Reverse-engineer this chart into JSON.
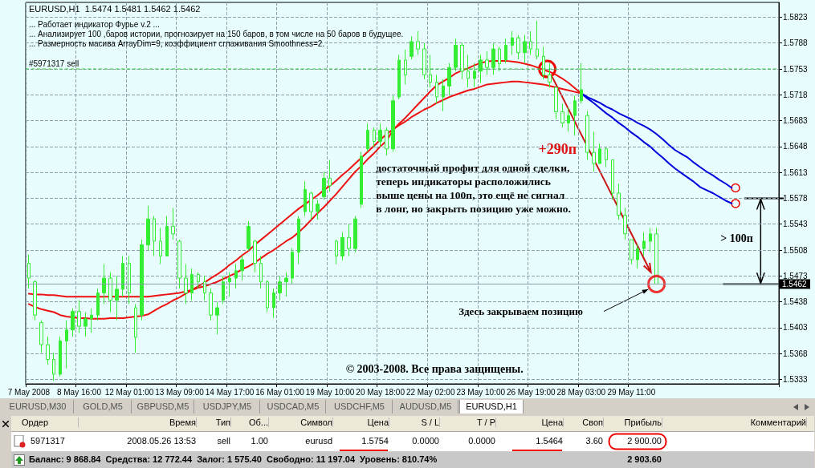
{
  "chart_data": {
    "type": "candlestick",
    "categories": [
      "7 May 2008",
      null,
      null,
      null,
      null,
      null,
      null,
      null,
      "8 May 16:00",
      null,
      null,
      null,
      null,
      null,
      null,
      null,
      "12 May 01:00",
      null,
      null,
      null,
      null,
      null,
      null,
      null,
      "13 May 09:00",
      null,
      null,
      null,
      null,
      null,
      null,
      null,
      "14 May 17:00",
      null,
      null,
      null,
      null,
      null,
      null,
      null,
      "16 May 01:00",
      null,
      null,
      null,
      null,
      null,
      null,
      null,
      "19 May 10:00",
      null,
      null,
      null,
      null,
      null,
      null,
      null,
      "20 May 18:00",
      null,
      null,
      null,
      null,
      null,
      null,
      null,
      "22 May 02:00",
      null,
      null,
      null,
      null,
      null,
      null,
      null,
      "23 May 10:00",
      null,
      null,
      null,
      null,
      null,
      null,
      null,
      "26 May 19:00",
      null,
      null,
      null,
      null,
      null,
      null,
      null,
      "28 May 03:00",
      null,
      null,
      null,
      null,
      null,
      null,
      null,
      "29 May 11:00",
      null,
      null,
      null,
      null,
      null,
      null,
      null,
      null,
      null,
      null,
      null,
      null,
      null,
      null,
      null,
      null,
      null,
      null,
      null,
      null,
      null,
      null,
      null
    ],
    "series": [
      {
        "color": "#33ee33",
        "ohlc": [
          [
            1.549,
            1.5502,
            1.5456,
            1.547
          ],
          [
            1.5465,
            1.5467,
            1.5413,
            1.542
          ],
          [
            1.541,
            1.5413,
            1.5369,
            1.538
          ],
          [
            1.538,
            1.5391,
            1.5353,
            1.536
          ],
          [
            1.536,
            1.5369,
            1.5331,
            1.534
          ],
          [
            1.534,
            1.5391,
            1.5337,
            1.5385
          ],
          [
            1.5385,
            1.5413,
            1.5348,
            1.54
          ],
          [
            1.54,
            1.5429,
            1.5391,
            1.5425
          ],
          [
            1.5425,
            1.544,
            1.5396,
            1.5405
          ],
          [
            1.5405,
            1.5424,
            1.5391,
            1.5415
          ],
          [
            1.5415,
            1.5429,
            1.5396,
            1.542
          ],
          [
            1.542,
            1.5456,
            1.5413,
            1.545
          ],
          [
            1.545,
            1.5489,
            1.5435,
            1.547
          ],
          [
            1.547,
            1.5478,
            1.5424,
            1.544
          ],
          [
            1.544,
            1.5473,
            1.5413,
            1.5455
          ],
          [
            1.5455,
            1.55,
            1.5445,
            1.549
          ],
          [
            1.549,
            1.55,
            1.5435,
            1.545
          ],
          [
            1.543,
            1.5435,
            1.5369,
            1.539
          ],
          [
            1.542,
            1.5522,
            1.5413,
            1.5515
          ],
          [
            1.5515,
            1.5568,
            1.5507,
            1.555
          ],
          [
            1.555,
            1.5554,
            1.55,
            1.552
          ],
          [
            1.552,
            1.5538,
            1.5489,
            1.55
          ],
          [
            1.55,
            1.5554,
            1.55,
            1.554
          ],
          [
            1.554,
            1.5565,
            1.5522,
            1.553
          ],
          [
            1.552,
            1.5522,
            1.5456,
            1.547
          ],
          [
            1.547,
            1.5489,
            1.5435,
            1.545
          ],
          [
            1.545,
            1.5483,
            1.544,
            1.5475
          ],
          [
            1.5475,
            1.5478,
            1.5456,
            1.5465
          ],
          [
            1.5465,
            1.5473,
            1.544,
            1.545
          ],
          [
            1.545,
            1.5456,
            1.5413,
            1.542
          ],
          [
            1.542,
            1.5438,
            1.5394,
            1.543
          ],
          [
            1.544,
            1.5473,
            1.5435,
            1.5465
          ],
          [
            1.5465,
            1.5478,
            1.5445,
            1.547
          ],
          [
            1.547,
            1.5489,
            1.5456,
            1.548
          ],
          [
            1.548,
            1.55,
            1.5467,
            1.5495
          ],
          [
            1.551,
            1.5547,
            1.5507,
            1.554
          ],
          [
            1.552,
            1.5522,
            1.5478,
            1.549
          ],
          [
            1.549,
            1.55,
            1.5456,
            1.5465
          ],
          [
            1.5465,
            1.5467,
            1.5424,
            1.543
          ],
          [
            1.543,
            1.5456,
            1.5416,
            1.545
          ],
          [
            1.545,
            1.5473,
            1.544,
            1.5465
          ],
          [
            1.5465,
            1.5478,
            1.5445,
            1.547
          ],
          [
            1.547,
            1.5511,
            1.5462,
            1.5505
          ],
          [
            1.5505,
            1.5554,
            1.5489,
            1.555
          ],
          [
            1.556,
            1.5601,
            1.5554,
            1.559
          ],
          [
            1.5585,
            1.5587,
            1.5549,
            1.556
          ],
          [
            1.556,
            1.5576,
            1.5549,
            1.557
          ],
          [
            1.558,
            1.5614,
            1.5576,
            1.5605
          ],
          [
            1.5605,
            1.563,
            1.5587,
            1.5595
          ],
          [
            1.552,
            1.5522,
            1.5489,
            1.55
          ],
          [
            1.55,
            1.5532,
            1.5494,
            1.5525
          ],
          [
            1.5525,
            1.5543,
            1.55,
            1.551
          ],
          [
            1.551,
            1.5554,
            1.5505,
            1.555
          ],
          [
            1.557,
            1.5641,
            1.5565,
            1.5635
          ],
          [
            1.5645,
            1.5679,
            1.5641,
            1.567
          ],
          [
            1.567,
            1.5674,
            1.5647,
            1.5655
          ],
          [
            1.5655,
            1.5679,
            1.5647,
            1.567
          ],
          [
            1.567,
            1.5674,
            1.5636,
            1.5645
          ],
          [
            1.5645,
            1.5717,
            1.5641,
            1.571
          ],
          [
            1.5715,
            1.5772,
            1.5712,
            1.5765
          ],
          [
            1.5765,
            1.5779,
            1.5732,
            1.5745
          ],
          [
            1.577,
            1.5797,
            1.5766,
            1.579
          ],
          [
            1.579,
            1.5804,
            1.5772,
            1.578
          ],
          [
            1.578,
            1.5788,
            1.5739,
            1.5745
          ],
          [
            1.5745,
            1.5772,
            1.5728,
            1.5735
          ],
          [
            1.5735,
            1.5745,
            1.5706,
            1.5715
          ],
          [
            1.5715,
            1.5739,
            1.5696,
            1.573
          ],
          [
            1.573,
            1.5761,
            1.5717,
            1.5755
          ],
          [
            1.5755,
            1.5794,
            1.575,
            1.5785
          ],
          [
            1.5785,
            1.5788,
            1.5739,
            1.575
          ],
          [
            1.575,
            1.5772,
            1.5728,
            1.574
          ],
          [
            1.574,
            1.5761,
            1.5728,
            1.575
          ],
          [
            1.575,
            1.5772,
            1.5734,
            1.5765
          ],
          [
            1.5765,
            1.5777,
            1.5745,
            1.5755
          ],
          [
            1.5755,
            1.5788,
            1.5745,
            1.578
          ],
          [
            1.578,
            1.5783,
            1.575,
            1.576
          ],
          [
            1.5765,
            1.5794,
            1.5761,
            1.5785
          ],
          [
            1.5785,
            1.5804,
            1.5772,
            1.5795
          ],
          [
            1.5795,
            1.5799,
            1.5766,
            1.5775
          ],
          [
            1.5775,
            1.5799,
            1.5761,
            1.579
          ],
          [
            1.579,
            1.5804,
            1.5772,
            1.578
          ],
          [
            1.578,
            1.5818,
            1.5766,
            1.577
          ],
          [
            1.577,
            1.5783,
            1.5739,
            1.5745
          ],
          [
            1.5745,
            1.5761,
            1.5728,
            1.5735
          ],
          [
            1.5728,
            1.5728,
            1.5685,
            1.5695
          ],
          [
            1.5695,
            1.5706,
            1.5674,
            1.568
          ],
          [
            1.568,
            1.5701,
            1.5668,
            1.569
          ],
          [
            1.569,
            1.5717,
            1.5663,
            1.571
          ],
          [
            1.571,
            1.5761,
            1.5706,
            1.5725
          ],
          [
            1.569,
            1.5696,
            1.563,
            1.564
          ],
          [
            1.564,
            1.5668,
            1.5614,
            1.5625
          ],
          [
            1.5625,
            1.5652,
            1.5625,
            1.5645
          ],
          [
            1.5645,
            1.5647,
            1.562,
            1.563
          ],
          [
            1.563,
            1.563,
            1.5576,
            1.5585
          ],
          [
            1.5585,
            1.5598,
            1.5549,
            1.5555
          ],
          [
            1.5555,
            1.5565,
            1.5522,
            1.553
          ],
          [
            1.5522,
            1.5522,
            1.5489,
            1.5495
          ],
          [
            1.5495,
            1.5516,
            1.5483,
            1.551
          ],
          [
            1.551,
            1.5532,
            1.55,
            1.552
          ],
          [
            1.552,
            1.5538,
            1.5505,
            1.553
          ],
          [
            1.553,
            1.5538,
            1.5462,
            1.5462
          ],
          null,
          null,
          null,
          null,
          null,
          null,
          null,
          null,
          null,
          null,
          null,
          null,
          null,
          null,
          null,
          null,
          null,
          null,
          null
        ]
      },
      {
        "type": "line",
        "color": "#ee1111",
        "values": [
          1.5449,
          1.5448,
          1.5448,
          1.5447,
          1.5447,
          1.5446,
          1.5445,
          1.5445,
          1.5445,
          1.5445,
          1.5445,
          1.5445,
          1.5445,
          1.5445,
          1.5445,
          1.5445,
          1.5445,
          1.5445,
          1.5445,
          1.5445,
          1.5446,
          1.5447,
          1.5448,
          1.5449,
          1.545,
          1.5452,
          1.5454,
          1.5457,
          1.5459,
          1.5462,
          1.5465,
          1.5469,
          1.5473,
          1.5477,
          1.5482,
          1.5486,
          1.5491,
          1.5497,
          1.5503,
          1.5508,
          1.5514,
          1.552,
          1.5525,
          1.5532,
          1.554,
          1.5549,
          1.5558,
          1.5566,
          1.5575,
          1.5584,
          1.5594,
          1.5604,
          1.5614,
          1.5622,
          1.5631,
          1.5639,
          1.5648,
          1.5656,
          1.567,
          1.5679,
          1.5687,
          1.5696,
          1.5705,
          1.5714,
          1.5723,
          1.5731,
          1.5736,
          1.5741,
          1.5747,
          1.5751,
          1.5754,
          1.5758,
          1.5761,
          1.5763,
          1.5764,
          1.5764,
          1.5764,
          1.5763,
          1.5762,
          1.576,
          1.5758,
          1.5755,
          1.5752,
          1.5749,
          1.5745,
          1.574,
          1.5734,
          1.5727,
          1.572,
          null,
          null,
          null,
          null,
          null,
          null,
          null,
          null,
          null,
          null,
          null,
          null,
          null,
          null,
          null,
          null,
          null,
          null,
          null,
          null,
          null,
          null,
          null,
          null,
          null,
          null,
          null,
          null,
          null,
          null,
          null
        ]
      },
      {
        "type": "line",
        "color": "#ee1111",
        "values": [
          1.5435,
          1.5431,
          1.5428,
          1.5426,
          1.5424,
          1.542,
          1.5418,
          1.5417,
          1.5416,
          1.5416,
          1.5415,
          1.5415,
          1.5415,
          1.5416,
          1.5416,
          1.5416,
          1.5417,
          1.5418,
          1.5419,
          1.5421,
          1.5426,
          1.5431,
          1.5435,
          1.544,
          1.5444,
          1.5449,
          1.5454,
          1.5459,
          1.5464,
          1.547,
          1.5475,
          1.5481,
          1.5488,
          1.5494,
          1.5501,
          1.5507,
          1.5515,
          1.5522,
          1.5529,
          1.5536,
          1.5543,
          1.555,
          1.5557,
          1.5564,
          1.557,
          1.5576,
          1.5582,
          1.5589,
          1.5595,
          1.5602,
          1.561,
          1.5617,
          1.5625,
          1.5633,
          1.5641,
          1.5649,
          1.5657,
          1.5665,
          1.5671,
          1.5677,
          1.5682,
          1.5688,
          1.5693,
          1.5698,
          1.5702,
          1.5707,
          1.5711,
          1.5715,
          1.5718,
          1.5721,
          1.5724,
          1.5726,
          1.5729,
          1.5732,
          1.5733,
          1.5734,
          1.5735,
          1.5736,
          1.5736,
          1.5735,
          1.5734,
          1.5733,
          1.5732,
          1.573,
          1.5728,
          1.5726,
          1.5724,
          1.5722,
          1.572,
          null,
          null,
          null,
          null,
          null,
          null,
          null,
          null,
          null,
          null,
          null,
          null,
          null,
          null,
          null,
          null,
          null,
          null,
          null,
          null,
          null,
          null,
          null,
          null,
          null,
          null,
          null,
          null,
          null,
          null,
          null
        ]
      },
      {
        "type": "line",
        "color": "#0000dd",
        "values": [
          null,
          null,
          null,
          null,
          null,
          null,
          null,
          null,
          null,
          null,
          null,
          null,
          null,
          null,
          null,
          null,
          null,
          null,
          null,
          null,
          null,
          null,
          null,
          null,
          null,
          null,
          null,
          null,
          null,
          null,
          null,
          null,
          null,
          null,
          null,
          null,
          null,
          null,
          null,
          null,
          null,
          null,
          null,
          null,
          null,
          null,
          null,
          null,
          null,
          null,
          null,
          null,
          null,
          null,
          null,
          null,
          null,
          null,
          null,
          null,
          null,
          null,
          null,
          null,
          null,
          null,
          null,
          null,
          null,
          null,
          null,
          null,
          null,
          null,
          null,
          null,
          null,
          null,
          null,
          null,
          null,
          null,
          null,
          null,
          null,
          null,
          null,
          null,
          1.572,
          1.5715,
          1.5711,
          1.5707,
          1.5702,
          1.5698,
          1.5693,
          1.5689,
          1.5685,
          1.568,
          1.5676,
          1.5671,
          1.5665,
          1.5658,
          1.565,
          1.5643,
          1.5638,
          1.5633,
          1.5626,
          1.562,
          1.5614,
          1.5609,
          1.5603,
          1.5598,
          1.5592,
          null,
          null,
          null,
          null,
          null,
          null,
          null
        ]
      },
      {
        "type": "line",
        "color": "#0000dd",
        "values": [
          null,
          null,
          null,
          null,
          null,
          null,
          null,
          null,
          null,
          null,
          null,
          null,
          null,
          null,
          null,
          null,
          null,
          null,
          null,
          null,
          null,
          null,
          null,
          null,
          null,
          null,
          null,
          null,
          null,
          null,
          null,
          null,
          null,
          null,
          null,
          null,
          null,
          null,
          null,
          null,
          null,
          null,
          null,
          null,
          null,
          null,
          null,
          null,
          null,
          null,
          null,
          null,
          null,
          null,
          null,
          null,
          null,
          null,
          null,
          null,
          null,
          null,
          null,
          null,
          null,
          null,
          null,
          null,
          null,
          null,
          null,
          null,
          null,
          null,
          null,
          null,
          null,
          null,
          null,
          null,
          null,
          null,
          null,
          null,
          null,
          null,
          null,
          null,
          1.572,
          1.5713,
          1.5707,
          1.57,
          1.5693,
          1.5687,
          1.568,
          1.5674,
          1.5667,
          1.5661,
          1.5654,
          1.5648,
          1.564,
          1.5633,
          1.5625,
          1.5618,
          1.5612,
          1.5606,
          1.56,
          1.5593,
          1.5589,
          1.5585,
          1.558,
          1.5575,
          1.5571,
          null,
          null,
          null,
          null,
          null,
          null,
          null
        ]
      },
      {
        "type": "scatter",
        "color": "#ee0000",
        "marker": "circle",
        "values": [
          null,
          null,
          null,
          null,
          null,
          null,
          null,
          null,
          null,
          null,
          null,
          null,
          null,
          null,
          null,
          null,
          null,
          null,
          null,
          null,
          null,
          null,
          null,
          null,
          null,
          null,
          null,
          null,
          null,
          null,
          null,
          null,
          null,
          null,
          null,
          null,
          null,
          null,
          null,
          null,
          null,
          null,
          null,
          null,
          null,
          null,
          null,
          null,
          null,
          null,
          null,
          null,
          null,
          null,
          null,
          null,
          null,
          null,
          null,
          null,
          null,
          null,
          null,
          null,
          null,
          null,
          null,
          null,
          null,
          null,
          null,
          null,
          null,
          null,
          null,
          null,
          null,
          null,
          null,
          null,
          null,
          null,
          null,
          null,
          null,
          null,
          null,
          null,
          null,
          null,
          null,
          null,
          null,
          null,
          null,
          null,
          null,
          null,
          null,
          null,
          1.5462,
          null,
          null,
          null,
          null,
          null,
          null,
          null,
          null,
          null,
          null,
          null,
          null,
          null,
          null,
          null,
          null,
          null,
          null,
          null
        ]
      }
    ],
    "ylim": [
      1.5327,
      1.5843
    ],
    "yticks": [
      1.5333,
      1.5368,
      1.5403,
      1.5438,
      1.5473,
      1.5508,
      1.5543,
      1.5578,
      1.5613,
      1.5648,
      1.5683,
      1.5718,
      1.5753,
      1.5788,
      1.5823
    ],
    "grid": true,
    "marker": "none",
    "ref_lines": [
      {
        "axis": "y",
        "value": 1.5753,
        "label": "#5971317 sell",
        "color": "#33cc33",
        "line_style": "dashed"
      },
      {
        "axis": "y",
        "value": 1.5462,
        "label": "1.5462",
        "color": "#8a9aa8",
        "line_style": "solid"
      }
    ],
    "annotations": [
      "EURUSD,H1  1.5474 1.5481 1.5462 1.5462",
      "... Работает индикатор Фурье v.2 ...",
      "... Анализирует 100 ,баров истории, прогнозирует на 150 баров, в том числе на 50 баров в будущее.",
      "... Размерность масива ArrayDim=9, коэффициент сглаживания Smoothness=2.",
      "+290п",
      "достаточный профит для одной сделки,\nтеперь индикаторы расположились\nвыше цены на 100п, это ещё не сигнал\nв лонг, но закрыть позицию уже можно.",
      "> 100п",
      "Здесь закрываем позицию",
      "© 2003-2008. Все права защищены.",
      "EURUSD,M30",
      "GOLD,M5",
      "GBPUSD,M5",
      "USDJPY,M5",
      "USDCAD,M5",
      "USDCHF,M5",
      "AUDUSD,M5",
      "EURUSD,H1",
      "Ордер",
      "Время",
      "Тип",
      "Об...",
      "Символ",
      "Цена",
      "S / L",
      "T / P",
      "Цена",
      "Своп",
      "Прибыль",
      "Комментарий",
      "5971317",
      "2008.05.26 13:53",
      "sell",
      "1.00",
      "eurusd",
      "1.5754",
      "0.0000",
      "0.0000",
      "1.5464",
      "3.60",
      "2 900.00",
      "Баланс: 9 868.84  Средства: 12 772.44  Залог: 1 575.40  Свободно: 11 197.04  Уровень: 810.74%",
      "2 903.60"
    ]
  }
}
